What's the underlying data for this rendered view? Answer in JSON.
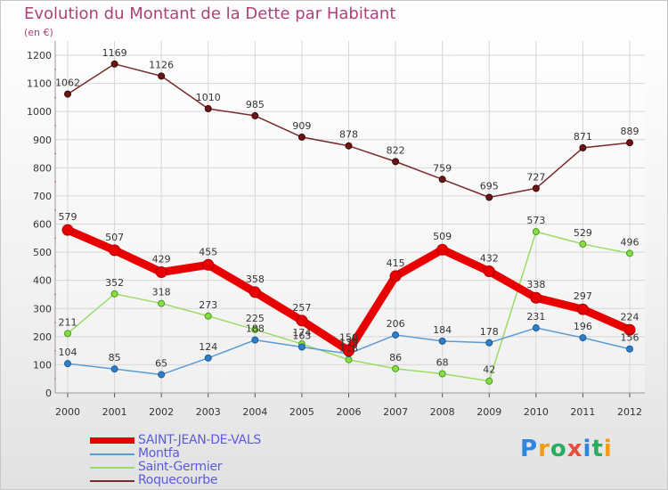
{
  "title": "Evolution du Montant de la Dette par Habitant",
  "unit": "(en €)",
  "logo_text": "Proxiti",
  "chart_data": {
    "type": "line",
    "title": "Evolution du Montant de la Dette par Habitant",
    "ylabel": "(en €)",
    "xlabel": "",
    "x": [
      "2000",
      "2001",
      "2002",
      "2003",
      "2004",
      "2005",
      "2006",
      "2007",
      "2008",
      "2009",
      "2010",
      "2011",
      "2012"
    ],
    "ylim": [
      0,
      1200
    ],
    "yticks": [
      0,
      100,
      200,
      300,
      400,
      500,
      600,
      700,
      800,
      900,
      1000,
      1100,
      1200
    ],
    "grid": true,
    "legend": "bottom",
    "series": [
      {
        "name": "SAINT-JEAN-DE-VALS",
        "color": "#e80000",
        "values": [
          579,
          507,
          429,
          455,
          358,
          257,
          150,
          415,
          509,
          432,
          338,
          297,
          224
        ]
      },
      {
        "name": "Montfa",
        "color": "#5b9bd5",
        "values": [
          104,
          85,
          65,
          124,
          188,
          163,
          139,
          206,
          184,
          178,
          231,
          196,
          156
        ]
      },
      {
        "name": "Saint-Germier",
        "color": "#99dd66",
        "values": [
          211,
          352,
          318,
          273,
          225,
          174,
          118,
          86,
          68,
          42,
          573,
          529,
          496
        ]
      },
      {
        "name": "Roquecourbe",
        "color": "#7a2a2a",
        "values": [
          1062,
          1169,
          1126,
          1010,
          985,
          909,
          878,
          822,
          759,
          695,
          727,
          871,
          889
        ]
      }
    ]
  }
}
